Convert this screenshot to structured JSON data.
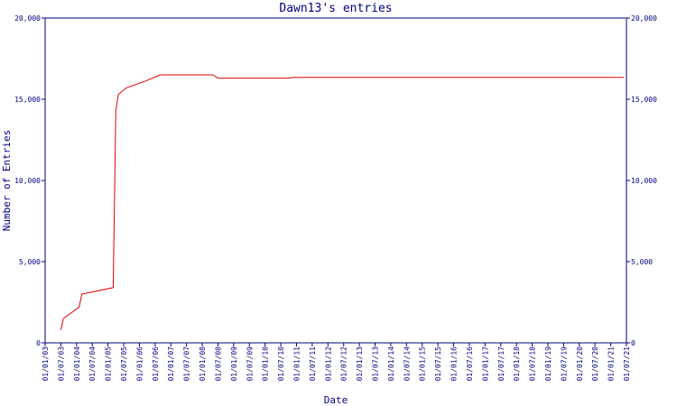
{
  "chart_data": {
    "type": "line",
    "title": "Dawn13's entries",
    "xlabel": "Date",
    "ylabel": "Number of Entries",
    "xlim": [
      "01/01/03",
      "01/07/21"
    ],
    "xticks": [
      "01/01/03",
      "01/07/03",
      "01/01/04",
      "01/07/04",
      "01/01/05",
      "01/07/05",
      "01/01/06",
      "01/07/06",
      "01/01/07",
      "01/07/07",
      "01/01/08",
      "01/07/08",
      "01/01/09",
      "01/07/09",
      "01/01/10",
      "01/07/10",
      "01/01/11",
      "01/07/11",
      "01/01/12",
      "01/07/12",
      "01/01/13",
      "01/07/13",
      "01/01/14",
      "01/07/14",
      "01/01/15",
      "01/07/15",
      "01/01/16",
      "01/07/16",
      "01/01/17",
      "01/07/17",
      "01/01/18",
      "01/07/18",
      "01/01/19",
      "01/07/19",
      "01/01/20",
      "01/07/20",
      "01/01/21",
      "01/07/21"
    ],
    "ylim": [
      0,
      20000
    ],
    "yticks": [
      0,
      {
        "value": 5000,
        "label": "5,000"
      },
      {
        "value": 10000,
        "label": "10,000"
      },
      {
        "value": 15000,
        "label": "15,000"
      },
      {
        "value": 20000,
        "label": "20,000"
      }
    ],
    "axis_color": "#000080",
    "series": [
      {
        "name": "Entries",
        "color": "#dd0000",
        "x": [
          "01/07/03",
          "01/08/03",
          "01/02/04",
          "01/03/04",
          "01/03/05",
          "01/04/05",
          "01/05/05",
          "01/08/05",
          "01/03/06",
          "01/09/06",
          "01/05/08",
          "01/07/08",
          "01/10/10",
          "01/12/10",
          "01/06/21"
        ],
        "values": [
          800,
          1500,
          2200,
          3000,
          3400,
          14300,
          15300,
          15700,
          16100,
          16500,
          16500,
          16300,
          16300,
          16350,
          16350
        ]
      }
    ]
  }
}
